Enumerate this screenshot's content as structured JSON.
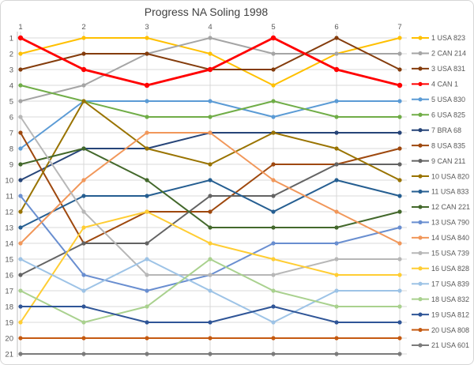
{
  "title": "Progress NA Soling 1998",
  "chart_data": {
    "type": "line",
    "title": "Progress NA Soling 1998",
    "x": [
      "1",
      "2",
      "3",
      "4",
      "5",
      "6",
      "7"
    ],
    "x_axis_position": "top",
    "xlabel": "",
    "ylabel": "",
    "y_ticks": [
      1,
      2,
      3,
      4,
      5,
      6,
      7,
      8,
      9,
      10,
      11,
      12,
      13,
      14,
      15,
      16,
      17,
      18,
      19,
      20,
      21
    ],
    "ylim": [
      1,
      21
    ],
    "y_inverted": true,
    "grid": true,
    "legend_position": "right",
    "series": [
      {
        "name": "1 USA 823",
        "color": "#FFC000",
        "values": [
          2,
          1,
          1,
          2,
          4,
          2,
          1
        ]
      },
      {
        "name": "2 CAN 214",
        "color": "#A5A5A5",
        "values": [
          5,
          4,
          2,
          1,
          2,
          2,
          2
        ]
      },
      {
        "name": "3 USA 831",
        "color": "#843C0C",
        "values": [
          3,
          2,
          2,
          3,
          3,
          1,
          3
        ]
      },
      {
        "name": "4 CAN 1",
        "color": "#FF0000",
        "values": [
          1,
          3,
          4,
          3,
          1,
          3,
          4
        ],
        "emphasis": true
      },
      {
        "name": "5 USA 830",
        "color": "#5B9BD5",
        "values": [
          8,
          5,
          5,
          5,
          6,
          5,
          5
        ]
      },
      {
        "name": "6 USA 825",
        "color": "#70AD47",
        "values": [
          4,
          5,
          6,
          6,
          5,
          6,
          6
        ]
      },
      {
        "name": "7 BRA 68",
        "color": "#264478",
        "values": [
          10,
          8,
          8,
          7,
          7,
          7,
          7
        ]
      },
      {
        "name": "8 USA 835",
        "color": "#9E480E",
        "values": [
          7,
          14,
          12,
          12,
          9,
          9,
          8
        ]
      },
      {
        "name": "9 CAN 211",
        "color": "#636363",
        "values": [
          16,
          14,
          14,
          11,
          11,
          9,
          9
        ]
      },
      {
        "name": "10 USA 820",
        "color": "#997300",
        "values": [
          12,
          5,
          8,
          9,
          7,
          8,
          10
        ]
      },
      {
        "name": "11 USA 833",
        "color": "#255E91",
        "values": [
          13,
          11,
          11,
          10,
          12,
          10,
          11
        ]
      },
      {
        "name": "12 CAN 221",
        "color": "#43682B",
        "values": [
          9,
          8,
          10,
          13,
          13,
          13,
          12
        ]
      },
      {
        "name": "13 USA 790",
        "color": "#698ED0",
        "values": [
          11,
          16,
          17,
          16,
          14,
          14,
          13
        ]
      },
      {
        "name": "14 USA 840",
        "color": "#F1975A",
        "values": [
          14,
          10,
          7,
          7,
          10,
          12,
          14
        ]
      },
      {
        "name": "15 USA 739",
        "color": "#B7B7B7",
        "values": [
          6,
          12,
          16,
          16,
          16,
          15,
          15
        ]
      },
      {
        "name": "16 USA 828",
        "color": "#FFCD33",
        "values": [
          19,
          13,
          12,
          14,
          15,
          16,
          16
        ]
      },
      {
        "name": "17 USA 839",
        "color": "#9DC3E6",
        "values": [
          15,
          17,
          15,
          17,
          19,
          17,
          17
        ]
      },
      {
        "name": "18 USA 832",
        "color": "#A9D18E",
        "values": [
          17,
          19,
          18,
          15,
          17,
          18,
          18
        ]
      },
      {
        "name": "19 USA 812",
        "color": "#2F5597",
        "values": [
          18,
          18,
          19,
          19,
          18,
          19,
          19
        ]
      },
      {
        "name": "20 USA 808",
        "color": "#C55A11",
        "values": [
          20,
          20,
          20,
          20,
          20,
          20,
          20
        ]
      },
      {
        "name": "21 USA 601",
        "color": "#7B7B7B",
        "values": [
          21,
          21,
          21,
          21,
          21,
          21,
          21
        ]
      }
    ],
    "style": {
      "grid_color": "#D9D9D9",
      "axis_color": "#BFBFBF",
      "tick_label_color": "#595959",
      "legend_text_color": "#595959",
      "title_color": "#404040"
    }
  }
}
